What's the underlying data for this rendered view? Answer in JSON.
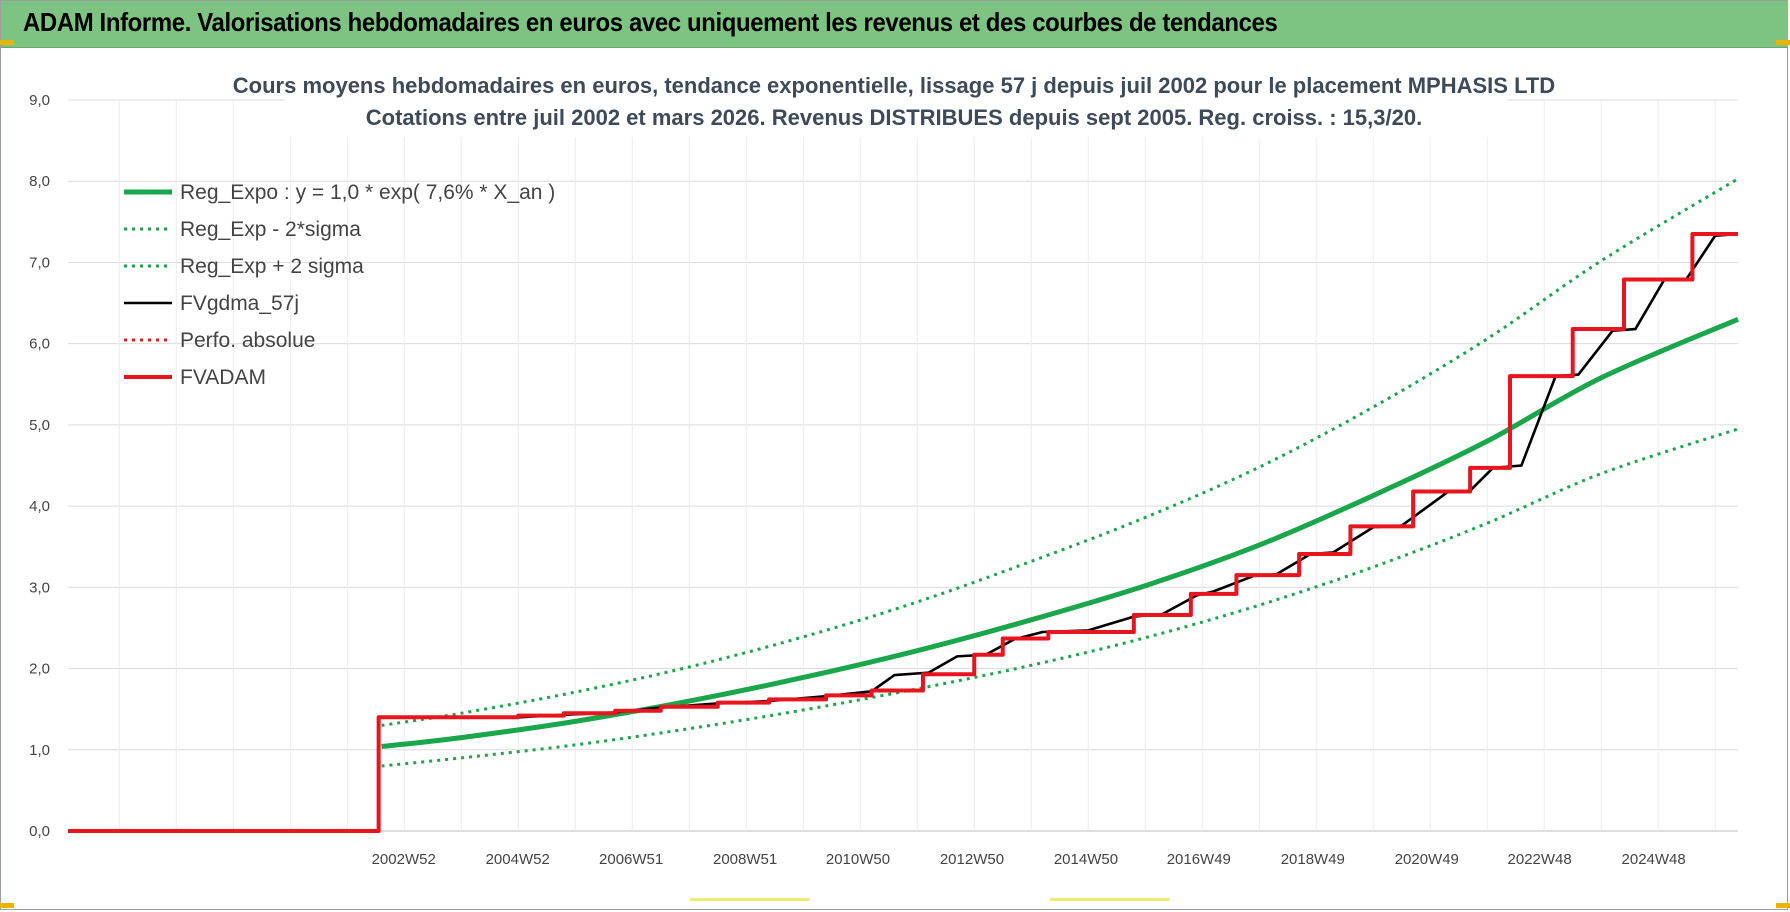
{
  "header": {
    "title": "ADAM Informe. Valorisations hebdomadaires en euros avec uniquement les revenus et des courbes de tendances"
  },
  "chart_data": {
    "type": "line",
    "title": "Cours moyens hebdomadaires en euros, tendance exponentielle, lissage 57 j depuis juil 2002 pour le placement MPHASIS LTD",
    "subtitle": "Cotations entre juil 2002 et mars 2026. Revenus DISTRIBUES depuis sept 2005. Reg. croiss. : 15,3/20.",
    "xlabel": "",
    "ylabel": "",
    "ylim": [
      0,
      9
    ],
    "xlim": [
      1997.1,
      2026.4
    ],
    "grid": true,
    "legend_position": "top-left",
    "y_ticks": [
      "0,0",
      "1,0",
      "2,0",
      "3,0",
      "4,0",
      "5,0",
      "6,0",
      "7,0",
      "8,0",
      "9,0"
    ],
    "x_ticks": [
      {
        "label": "2002W52",
        "x": 2002.99
      },
      {
        "label": "2004W52",
        "x": 2004.99
      },
      {
        "label": "2006W51",
        "x": 2006.98
      },
      {
        "label": "2008W51",
        "x": 2008.98
      },
      {
        "label": "2010W50",
        "x": 2010.96
      },
      {
        "label": "2012W50",
        "x": 2012.96
      },
      {
        "label": "2014W50",
        "x": 2014.96
      },
      {
        "label": "2016W49",
        "x": 2016.94
      },
      {
        "label": "2018W49",
        "x": 2018.94
      },
      {
        "label": "2020W49",
        "x": 2020.94
      },
      {
        "label": "2022W48",
        "x": 2022.92
      },
      {
        "label": "2024W48",
        "x": 2024.92
      }
    ],
    "series": [
      {
        "name": "Reg_Expo : y = 1,0 * exp( 7,6% *  X_an )",
        "color": "#1aa64a",
        "style": "solid-thick",
        "x": [
          2002.6,
          2004,
          2006,
          2008,
          2010,
          2012,
          2014,
          2016,
          2018,
          2020,
          2022,
          2024,
          2026.4
        ],
        "y": [
          1.04,
          1.15,
          1.35,
          1.6,
          1.89,
          2.22,
          2.6,
          3.02,
          3.52,
          4.13,
          4.8,
          5.58,
          6.3
        ]
      },
      {
        "name": "Reg_Exp - 2*sigma",
        "color": "#1aa64a",
        "style": "dotted",
        "x": [
          2002.6,
          2004,
          2006,
          2008,
          2010,
          2012,
          2014,
          2016,
          2018,
          2020,
          2022,
          2024,
          2026.4
        ],
        "y": [
          0.8,
          0.9,
          1.06,
          1.26,
          1.49,
          1.75,
          2.04,
          2.38,
          2.78,
          3.25,
          3.79,
          4.4,
          4.95
        ]
      },
      {
        "name": "Reg_Exp + 2 sigma",
        "color": "#1aa64a",
        "style": "dotted",
        "x": [
          2002.6,
          2004,
          2006,
          2008,
          2010,
          2012,
          2014,
          2016,
          2018,
          2020,
          2022,
          2024,
          2026.4
        ],
        "y": [
          1.3,
          1.45,
          1.71,
          2.02,
          2.39,
          2.82,
          3.32,
          3.86,
          4.48,
          5.22,
          6.06,
          7.02,
          8.03
        ]
      },
      {
        "name": "FVgdma_57j",
        "color": "#000000",
        "style": "solid-thin",
        "x": [
          1997.1,
          2002.55,
          2002.56,
          2005.0,
          2005.8,
          2006.7,
          2007.5,
          2008.5,
          2009.4,
          2010.4,
          2011.2,
          2011.6,
          2012.2,
          2012.7,
          2013.2,
          2013.7,
          2014.2,
          2015.0,
          2015.8,
          2016.3,
          2016.9,
          2017.2,
          2017.9,
          2018.3,
          2018.9,
          2019.3,
          2020.0,
          2020.5,
          2021.3,
          2021.7,
          2022.1,
          2022.6,
          2023.2,
          2023.6,
          2024.2,
          2024.6,
          2025.1,
          2025.5,
          2026.0,
          2026.4
        ],
        "y": [
          0,
          0,
          1.4,
          1.4,
          1.43,
          1.46,
          1.52,
          1.57,
          1.6,
          1.66,
          1.72,
          1.92,
          1.95,
          2.15,
          2.17,
          2.36,
          2.45,
          2.47,
          2.64,
          2.67,
          2.9,
          2.95,
          3.14,
          3.16,
          3.41,
          3.43,
          3.74,
          3.76,
          4.17,
          4.19,
          4.47,
          4.5,
          5.6,
          5.62,
          6.16,
          6.18,
          6.78,
          6.8,
          7.33,
          7.35
        ]
      },
      {
        "name": "Perfo. absolue",
        "color": "#e02020",
        "style": "dotted",
        "x": [],
        "y": []
      },
      {
        "name": "FVADAM",
        "color": "#e8141e",
        "style": "step-thick",
        "x": [
          1997.1,
          2002.55,
          2005.0,
          2005.8,
          2006.7,
          2007.5,
          2008.5,
          2009.4,
          2010.4,
          2011.2,
          2012.1,
          2013.0,
          2013.5,
          2014.3,
          2015.8,
          2016.8,
          2017.6,
          2018.7,
          2019.6,
          2020.7,
          2021.7,
          2022.4,
          2023.5,
          2024.4,
          2025.6,
          2026.4
        ],
        "y": [
          0,
          1.4,
          1.42,
          1.45,
          1.48,
          1.53,
          1.58,
          1.62,
          1.67,
          1.73,
          1.93,
          2.17,
          2.37,
          2.45,
          2.66,
          2.92,
          3.15,
          3.41,
          3.75,
          4.18,
          4.47,
          5.6,
          6.18,
          6.79,
          7.35,
          7.35
        ]
      }
    ]
  }
}
